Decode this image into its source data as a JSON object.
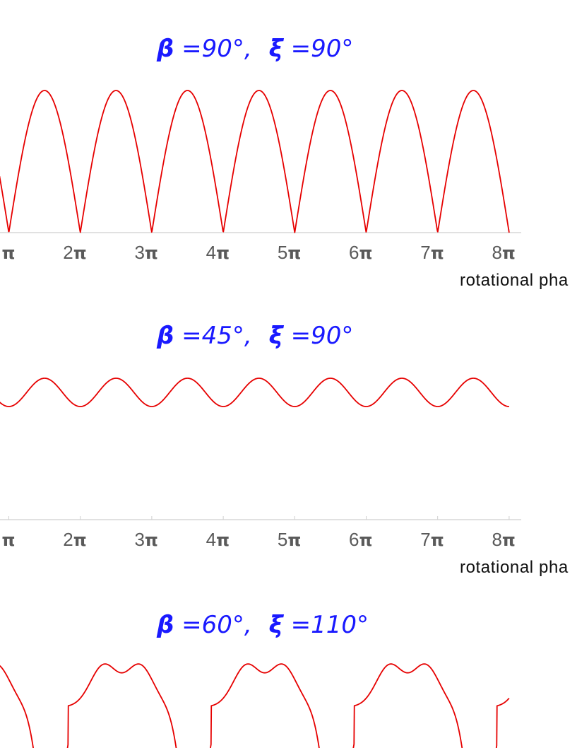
{
  "colors": {
    "curve": "#e60000",
    "title": "#1a1aff",
    "tick_label": "#5a5a5a",
    "axis": "#cfcfcf"
  },
  "panels": [
    {
      "title_beta": "β",
      "title_beta_value": " =90°,",
      "title_xi": "ξ",
      "title_xi_value": " =90°",
      "xlabel": "rotational pha",
      "tick_labels": [
        "π",
        "2π",
        "3π",
        "4π",
        "5π",
        "6π",
        "7π",
        "8π"
      ]
    },
    {
      "title_beta": "β",
      "title_beta_value": " =45°,",
      "title_xi": "ξ",
      "title_xi_value": " =90°",
      "xlabel": "rotational pha",
      "tick_labels": [
        "π",
        "2π",
        "3π",
        "4π",
        "5π",
        "6π",
        "7π",
        "8π"
      ]
    },
    {
      "title_beta": "β",
      "title_beta_value": " =60°,",
      "title_xi": "ξ",
      "title_xi_value": " =110°"
    }
  ],
  "chart_data": [
    {
      "type": "line",
      "title": "β =90°, ξ =90°",
      "xlabel": "rotational pha",
      "ylabel": "",
      "x_ticks": [
        "π",
        "2π",
        "3π",
        "4π",
        "5π",
        "6π",
        "7π",
        "8π"
      ],
      "xlim": [
        0.89,
        8.15
      ],
      "ylim": [
        0,
        1
      ],
      "grid": false,
      "series": [
        {
          "function": "|sin(x)|",
          "x_range": [
            0.87,
            8.0
          ],
          "note": "peaks of 1 at half-integer multiples of pi, zeros at integer multiples of pi"
        }
      ]
    },
    {
      "type": "line",
      "title": "β =45°, ξ =90°",
      "xlabel": "rotational pha",
      "ylabel": "",
      "x_ticks": [
        "π",
        "2π",
        "3π",
        "4π",
        "5π",
        "6π",
        "7π",
        "8π"
      ],
      "xlim": [
        0.89,
        8.15
      ],
      "ylim": [
        0,
        1
      ],
      "grid": false,
      "series": [
        {
          "function": "0.8 + 0.2*sin^2(x)",
          "x_range": [
            0.87,
            8.0
          ],
          "min": 0.8,
          "max": 1.0
        }
      ]
    },
    {
      "type": "line",
      "title": "β =60°, ξ =110°",
      "xlabel": "",
      "ylabel": "",
      "xlim": [
        0.89,
        8.15
      ],
      "grid": false,
      "series": [
        {
          "function": "double-humped periodic curve, period 2π, dipping below the visible frame near odd multiples of π",
          "x_range": [
            0.87,
            8.0
          ]
        }
      ]
    }
  ]
}
